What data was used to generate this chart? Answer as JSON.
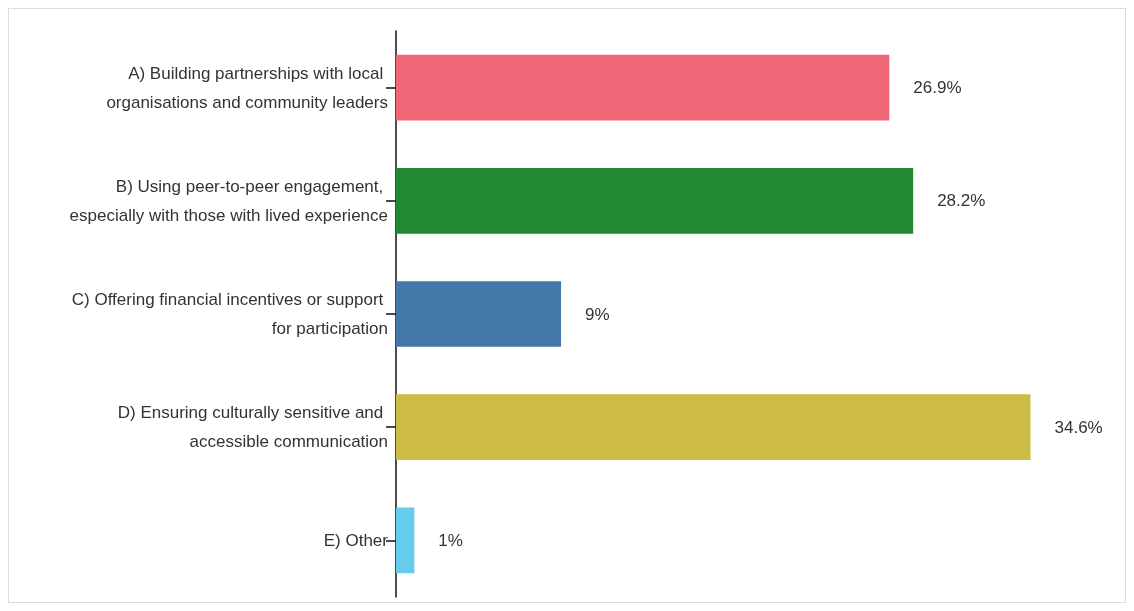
{
  "chart_data": {
    "type": "bar",
    "orientation": "horizontal",
    "categories": [
      "A) Building partnerships with local organisations and community leaders",
      "B) Using peer-to-peer engagement, especially with those with lived experience",
      "C) Offering financial incentives or support for participation",
      "D) Ensuring culturally sensitive and accessible communication",
      "E) Other"
    ],
    "values": [
      26.9,
      28.2,
      9,
      34.6,
      1
    ],
    "colors": [
      "#f06778",
      "#228833",
      "#4477aa",
      "#ccbb44",
      "#66ccee"
    ],
    "value_labels": [
      "26.9%",
      "28.2%",
      "9%",
      "34.6%",
      "1%"
    ],
    "tick_labels": "y",
    "grid": false
  }
}
